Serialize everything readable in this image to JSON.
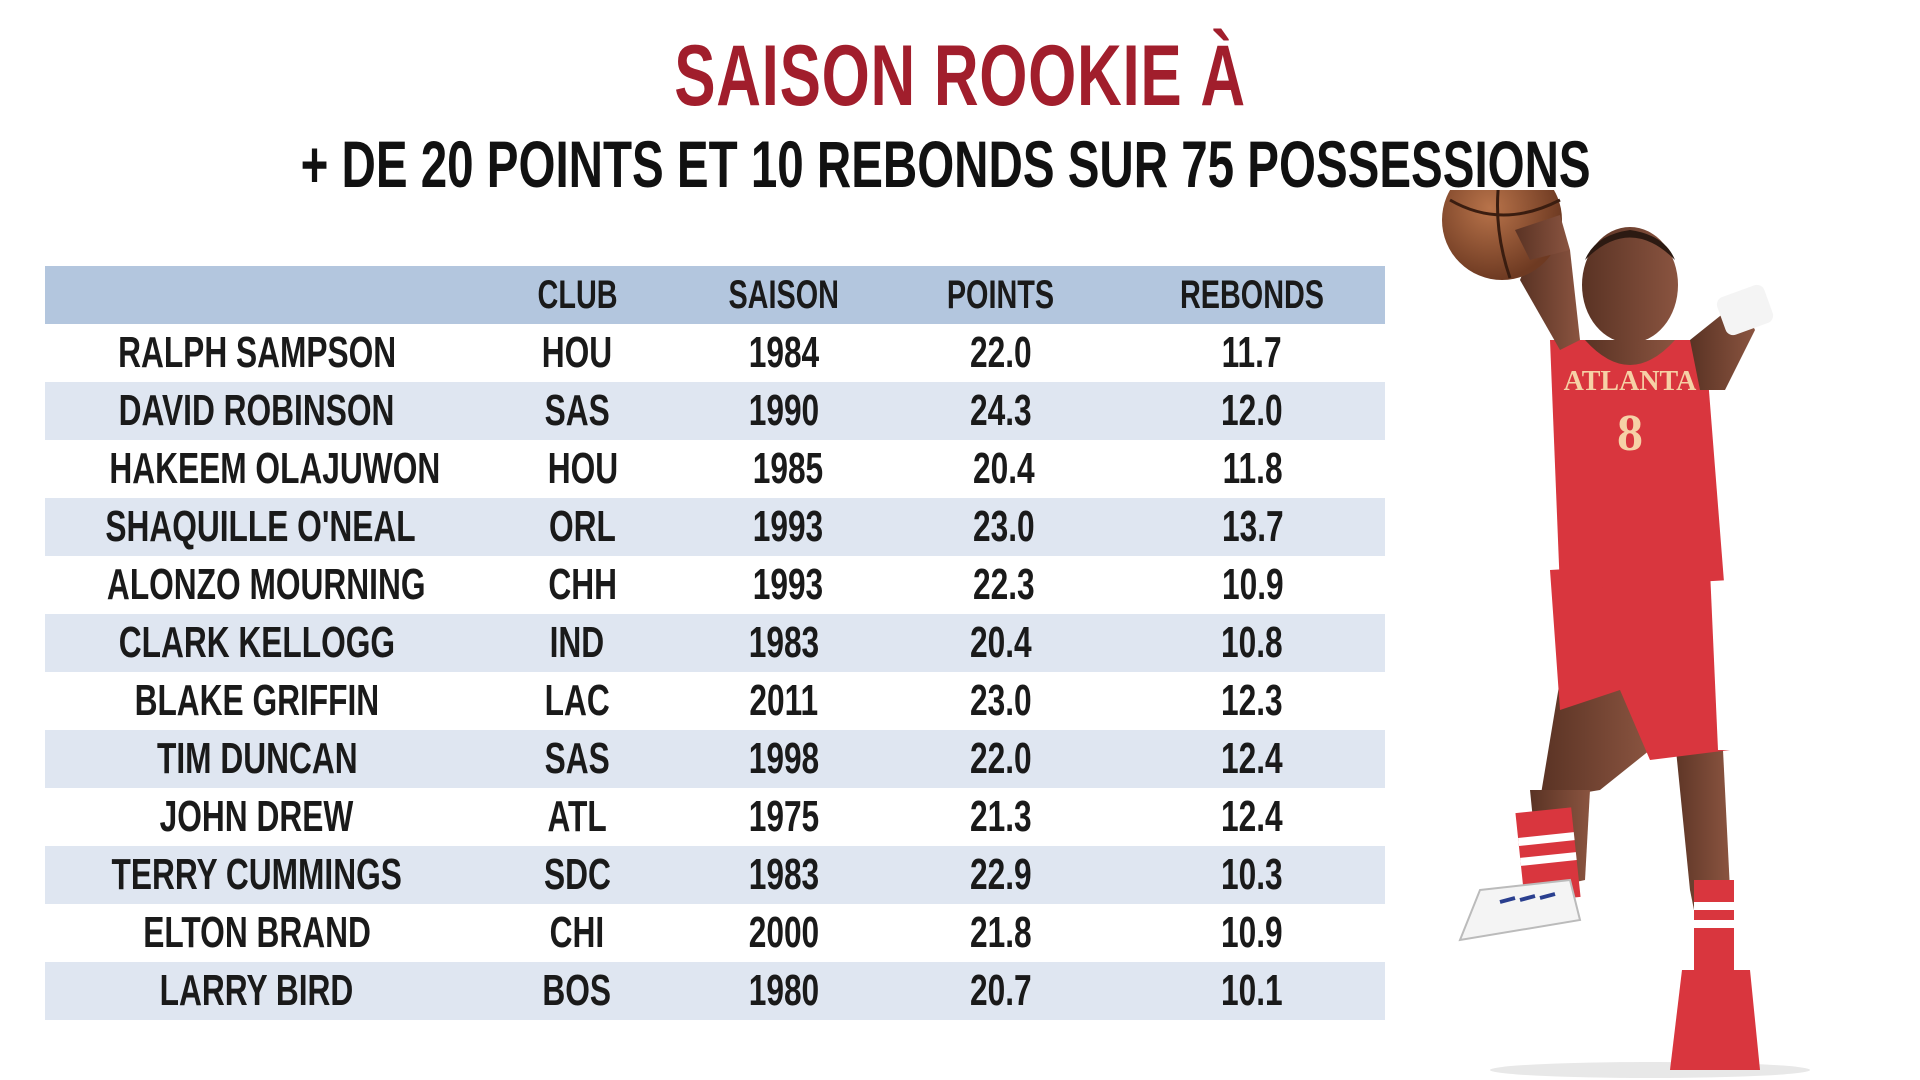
{
  "title": "SAISON ROOKIE À",
  "subtitle": "+ DE 20 POINTS ET 10 REBONDS SUR 75 POSSESSIONS",
  "colors": {
    "title": "#a11e2c",
    "header_row": "#b3c6de",
    "shaded_row": "#dfe6f1",
    "jersey": "#d9363e"
  },
  "image": {
    "jersey_text": "ATLANTA",
    "jersey_number": "8"
  },
  "chart_data": {
    "type": "table",
    "columns": [
      "",
      "CLUB",
      "SAISON",
      "POINTS",
      "REBONDS"
    ],
    "rows": [
      {
        "name": "RALPH SAMPSON",
        "club": "HOU",
        "season": "1984",
        "points": "22.0",
        "rebounds": "11.7"
      },
      {
        "name": "DAVID ROBINSON",
        "club": "SAS",
        "season": "1990",
        "points": "24.3",
        "rebounds": "12.0"
      },
      {
        "name": "HAKEEM OLAJUWON",
        "club": "HOU",
        "season": "1985",
        "points": "20.4",
        "rebounds": "11.8"
      },
      {
        "name": "SHAQUILLE O'NEAL",
        "club": "ORL",
        "season": "1993",
        "points": "23.0",
        "rebounds": "13.7"
      },
      {
        "name": "ALONZO MOURNING",
        "club": "CHH",
        "season": "1993",
        "points": "22.3",
        "rebounds": "10.9"
      },
      {
        "name": "CLARK KELLOGG",
        "club": "IND",
        "season": "1983",
        "points": "20.4",
        "rebounds": "10.8"
      },
      {
        "name": "BLAKE GRIFFIN",
        "club": "LAC",
        "season": "2011",
        "points": "23.0",
        "rebounds": "12.3"
      },
      {
        "name": "TIM DUNCAN",
        "club": "SAS",
        "season": "1998",
        "points": "22.0",
        "rebounds": "12.4"
      },
      {
        "name": "JOHN DREW",
        "club": "ATL",
        "season": "1975",
        "points": "21.3",
        "rebounds": "12.4"
      },
      {
        "name": "TERRY CUMMINGS",
        "club": "SDC",
        "season": "1983",
        "points": "22.9",
        "rebounds": "10.3"
      },
      {
        "name": "ELTON BRAND",
        "club": "CHI",
        "season": "2000",
        "points": "21.8",
        "rebounds": "10.9"
      },
      {
        "name": "LARRY BIRD",
        "club": "BOS",
        "season": "1980",
        "points": "20.7",
        "rebounds": "10.1"
      }
    ]
  }
}
